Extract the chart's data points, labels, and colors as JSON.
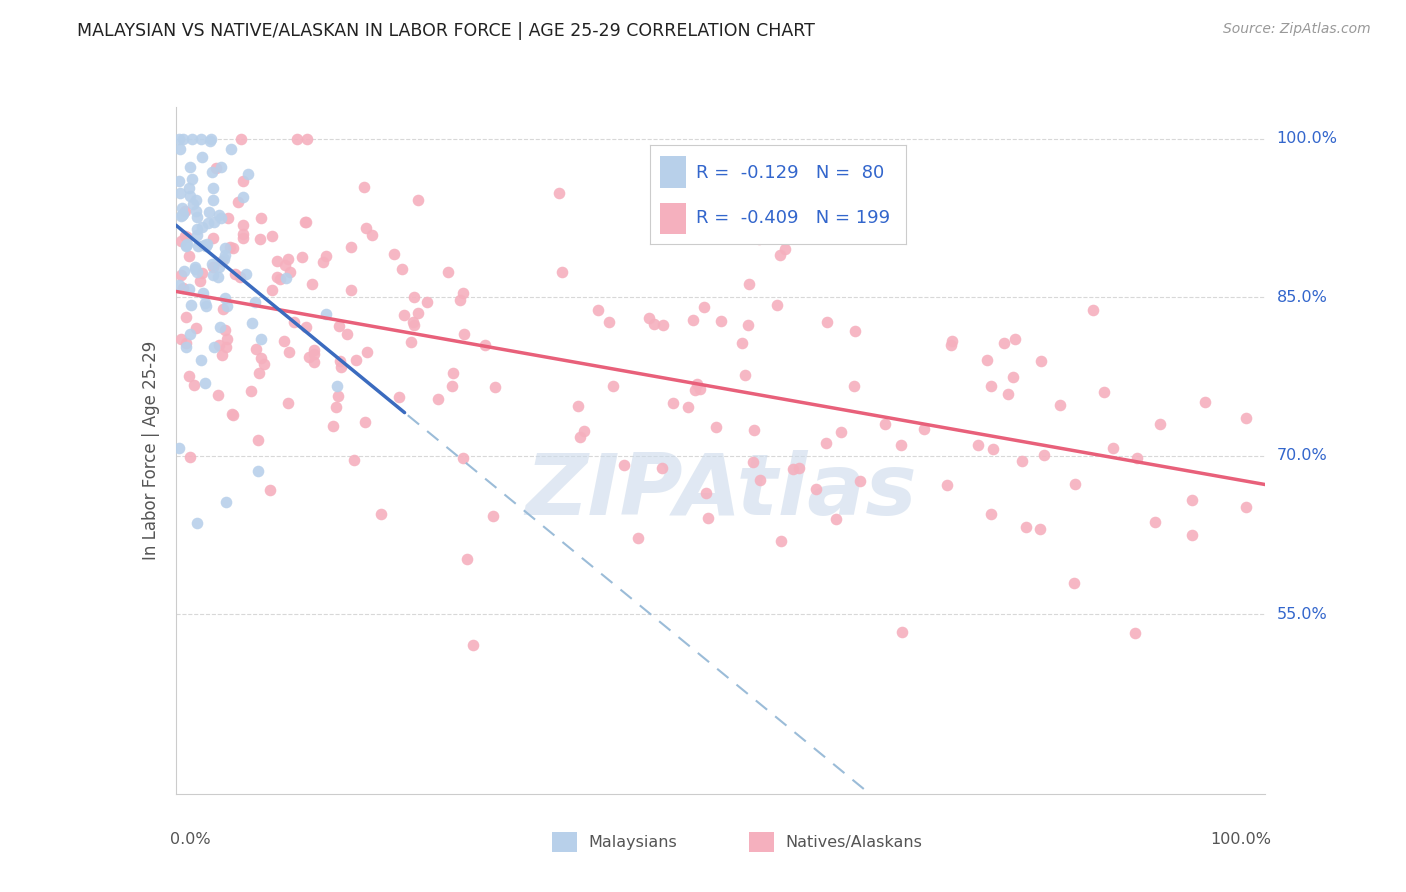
{
  "title": "MALAYSIAN VS NATIVE/ALASKAN IN LABOR FORCE | AGE 25-29 CORRELATION CHART",
  "source": "Source: ZipAtlas.com",
  "ylabel": "In Labor Force | Age 25-29",
  "ytick_values": [
    0.55,
    0.7,
    0.85,
    1.0
  ],
  "ytick_labels": [
    "55.0%",
    "70.0%",
    "85.0%",
    "100.0%"
  ],
  "blue_color": "#b8d0ea",
  "pink_color": "#f5b0be",
  "blue_line_color": "#3b6bbf",
  "pink_line_color": "#e8607a",
  "dash_line_color": "#9bbcd8",
  "label_color": "#3366cc",
  "text_color": "#555555",
  "source_color": "#999999",
  "grid_color": "#d8d8d8",
  "watermark_color": "#ccdaeb",
  "xlim": [
    0.0,
    1.0
  ],
  "ylim": [
    0.38,
    1.03
  ],
  "blue_r": -0.129,
  "blue_n": 80,
  "pink_r": -0.409,
  "pink_n": 199
}
